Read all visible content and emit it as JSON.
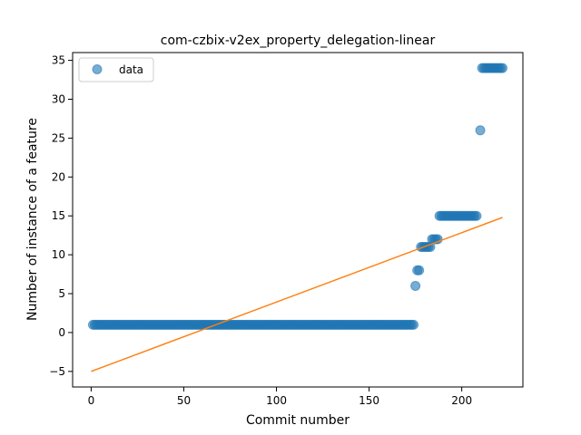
{
  "chart_data": {
    "type": "scatter",
    "title": "com-czbix-v2ex_property_delegation-linear",
    "xlabel": "Commit number",
    "ylabel": "Number of instance of a feature",
    "xlim": [
      -10,
      233
    ],
    "ylim": [
      -7,
      36
    ],
    "xticks": [
      0,
      50,
      100,
      150,
      200
    ],
    "yticks": [
      -5,
      0,
      5,
      10,
      15,
      20,
      25,
      30,
      35
    ],
    "legend": {
      "position": "top-left",
      "entries": [
        "data"
      ]
    },
    "colors": {
      "points": "#1f77b4",
      "fit": "#ff7f0e"
    },
    "series": [
      {
        "name": "data",
        "kind": "points",
        "runs": [
          {
            "x_start": 1,
            "x_end": 174,
            "y": 1
          },
          {
            "x_start": 176,
            "x_end": 177,
            "y": 8
          },
          {
            "x_start": 178,
            "x_end": 183,
            "y": 11
          },
          {
            "x_start": 184,
            "x_end": 187,
            "y": 12
          },
          {
            "x_start": 188,
            "x_end": 208,
            "y": 15
          },
          {
            "x_start": 211,
            "x_end": 222,
            "y": 34
          }
        ],
        "points": [
          {
            "x": 175,
            "y": 6
          },
          {
            "x": 210,
            "y": 26
          }
        ]
      },
      {
        "name": "",
        "kind": "line",
        "x": [
          0,
          222
        ],
        "y": [
          -5,
          14.8
        ]
      }
    ]
  }
}
